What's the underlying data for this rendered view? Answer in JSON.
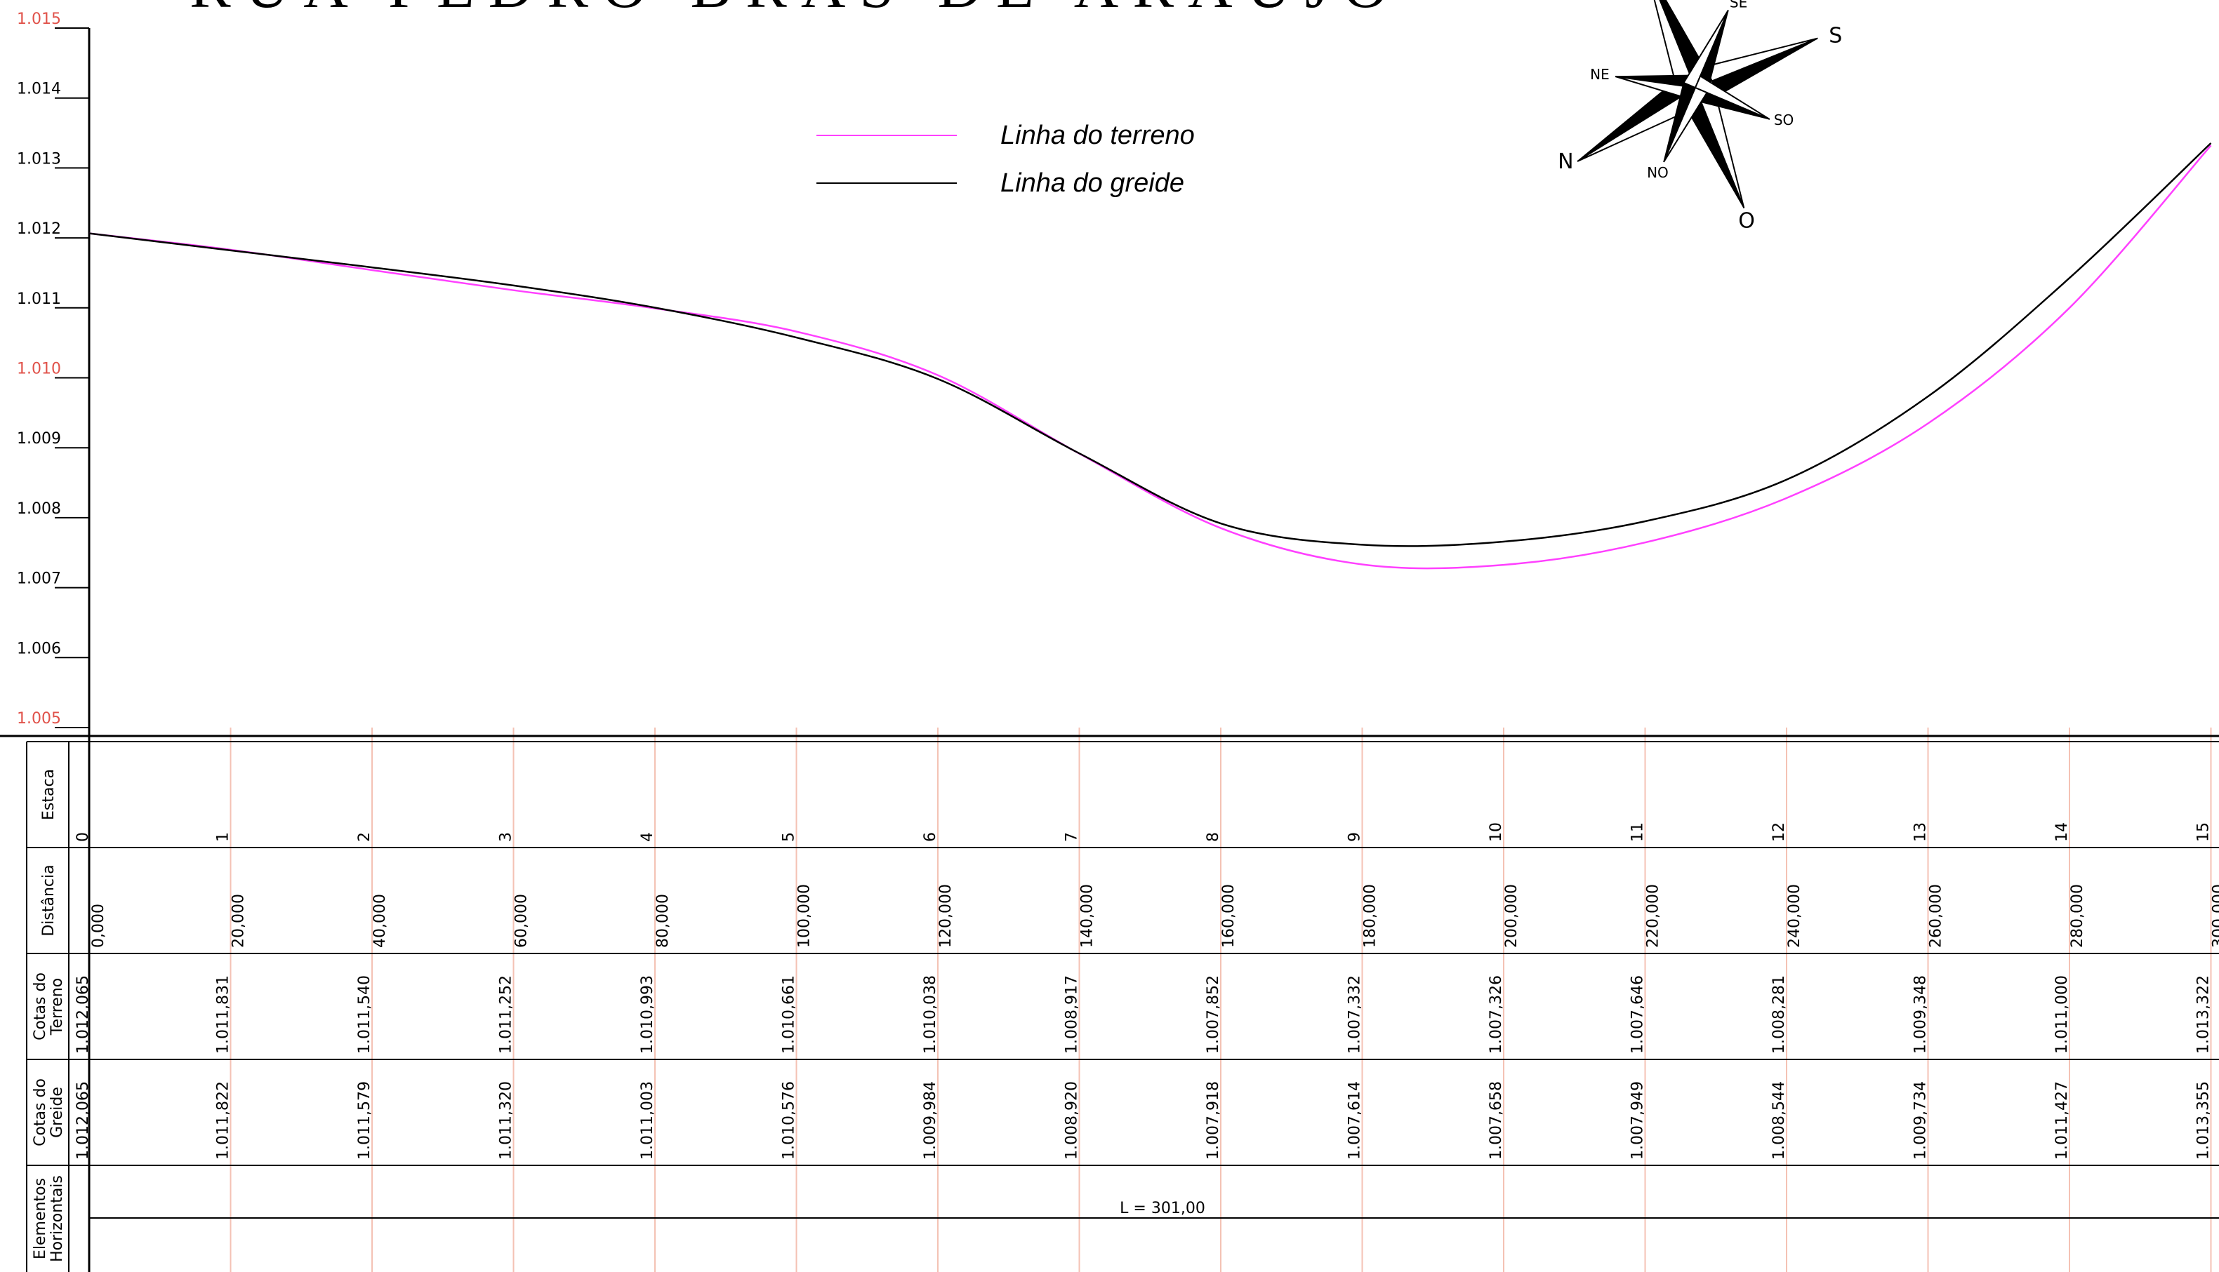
{
  "title": "RUA PEDRO BRAS DE ARAUJO",
  "colors": {
    "terrain": "#ff40ff",
    "grade": "#000000",
    "station_lines": "#f4c2b4",
    "axis_red": "#e0524a"
  },
  "legend": [
    {
      "label": "Linha do terreno",
      "color": "#ff40ff"
    },
    {
      "label": "Linha do greide",
      "color": "#000000"
    }
  ],
  "compass": {
    "icon": "compass-rose-icon",
    "labels": {
      "n": "N",
      "ne": "NE",
      "se": "SE",
      "s": "S",
      "so": "SO",
      "o": "O",
      "no": "NO"
    }
  },
  "chart_data": {
    "type": "line",
    "x_unit": "distance",
    "ylim": [
      1.005,
      1.015
    ],
    "y_ticks": [
      "1.005",
      "1.006",
      "1.007",
      "1.008",
      "1.009",
      "1.010",
      "1.011",
      "1.012",
      "1.013",
      "1.014",
      "1.015"
    ],
    "y_ticks_red": [
      "1.005",
      "1.010",
      "1.015"
    ],
    "x": [
      0,
      20,
      40,
      60,
      80,
      100,
      120,
      140,
      160,
      180,
      200,
      220,
      240,
      260,
      280,
      300
    ],
    "series": [
      {
        "name": "Linha do terreno",
        "color": "#ff40ff",
        "values": [
          1.012065,
          1.011831,
          1.01154,
          1.011252,
          1.010993,
          1.010661,
          1.010038,
          1.008917,
          1.007852,
          1.007332,
          1.007326,
          1.007646,
          1.008281,
          1.009348,
          1.011,
          1.013322
        ]
      },
      {
        "name": "Linha do greide",
        "color": "#000000",
        "values": [
          1.012065,
          1.011822,
          1.011579,
          1.01132,
          1.011003,
          1.010576,
          1.009984,
          1.00892,
          1.007918,
          1.007614,
          1.007658,
          1.007949,
          1.008544,
          1.009734,
          1.011427,
          1.013355
        ]
      }
    ]
  },
  "table": {
    "rows": [
      {
        "label": [
          "Estaca"
        ]
      },
      {
        "label": [
          "Distância"
        ]
      },
      {
        "label": [
          "Cotas do",
          "Terreno"
        ]
      },
      {
        "label": [
          "Cotas do",
          "Greide"
        ]
      },
      {
        "label": [
          "Elementos",
          "Horizontais"
        ]
      }
    ],
    "estaca": [
      "0",
      "1",
      "2",
      "3",
      "4",
      "5",
      "6",
      "7",
      "8",
      "9",
      "10",
      "11",
      "12",
      "13",
      "14",
      "15"
    ],
    "distancia": [
      "0,000",
      "20,000",
      "40,000",
      "60,000",
      "80,000",
      "100,000",
      "120,000",
      "140,000",
      "160,000",
      "180,000",
      "200,000",
      "220,000",
      "240,000",
      "260,000",
      "280,000",
      "300,000"
    ],
    "cotas_terreno": [
      "1.012,065",
      "1.011,831",
      "1.011,540",
      "1.011,252",
      "1.010,993",
      "1.010,661",
      "1.010,038",
      "1.008,917",
      "1.007,852",
      "1.007,332",
      "1.007,326",
      "1.007,646",
      "1.008,281",
      "1.009,348",
      "1.011,000",
      "1.013,322"
    ],
    "cotas_greide": [
      "1.012,065",
      "1.011,822",
      "1.011,579",
      "1.011,320",
      "1.011,003",
      "1.010,576",
      "1.009,984",
      "1.008,920",
      "1.007,918",
      "1.007,614",
      "1.007,658",
      "1.007,949",
      "1.008,544",
      "1.009,734",
      "1.011,427",
      "1.013,355"
    ],
    "elementos_horizontais": "L  =  301,00"
  }
}
